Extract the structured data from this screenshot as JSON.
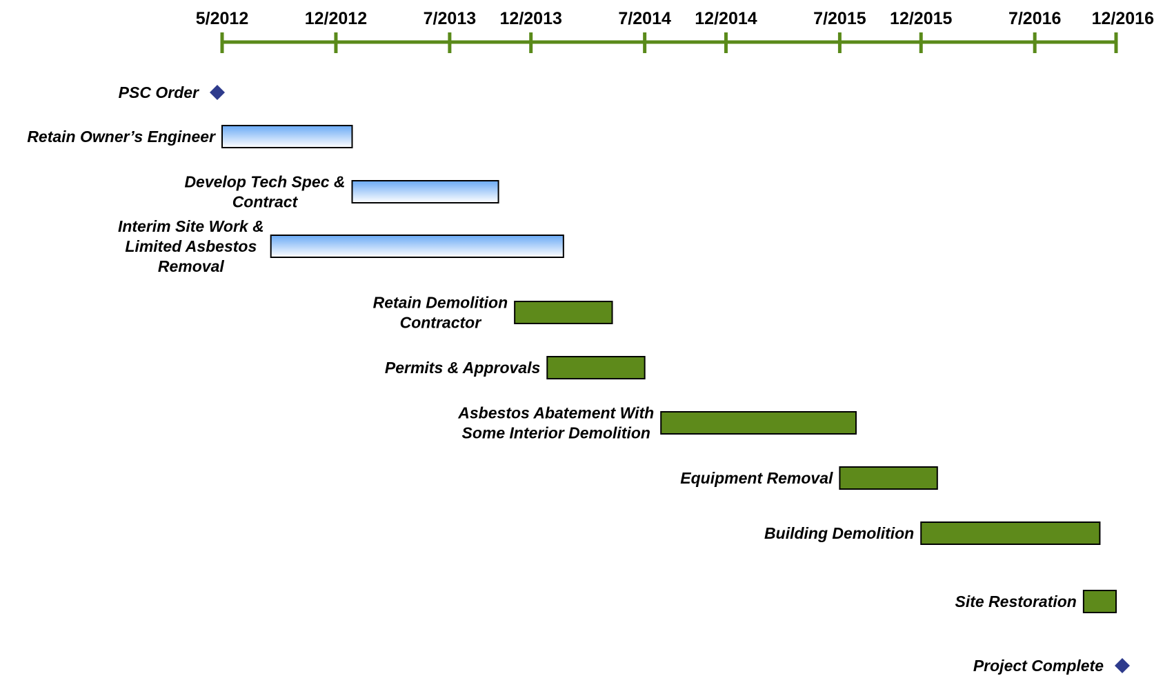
{
  "chart_data": {
    "type": "gantt",
    "title": "",
    "xlabel": "",
    "ylabel": "",
    "x_axis": {
      "ticks": [
        "5/2012",
        "12/2012",
        "7/2013",
        "12/2013",
        "7/2014",
        "12/2014",
        "7/2015",
        "12/2015",
        "7/2016",
        "12/2016"
      ],
      "range": [
        "2012-05",
        "2016-12"
      ],
      "color": "#5a8a1a"
    },
    "grid": false,
    "colors": {
      "phase1_bar_top": "#6aaaf5",
      "phase1_bar_bottom": "#ffffff",
      "phase2_bar": "#5e8a1b",
      "milestone": "#2e3b8c"
    },
    "tasks": [
      {
        "label_lines": [
          "PSC Order"
        ],
        "type": "milestone",
        "date": "2012-05"
      },
      {
        "label_lines": [
          "Retain Owner’s Engineer"
        ],
        "type": "bar",
        "phase": 1,
        "start": "2012-05",
        "end": "2013-01"
      },
      {
        "label_lines": [
          "Develop Tech Spec &",
          "Contract"
        ],
        "type": "bar",
        "phase": 1,
        "start": "2013-01",
        "end": "2013-10"
      },
      {
        "label_lines": [
          "Interim Site Work &",
          "Limited Asbestos",
          "Removal"
        ],
        "type": "bar",
        "phase": 1,
        "start": "2012-08",
        "end": "2014-02"
      },
      {
        "label_lines": [
          "Retain Demolition",
          "Contractor"
        ],
        "type": "bar",
        "phase": 2,
        "start": "2013-11",
        "end": "2014-05"
      },
      {
        "label_lines": [
          "Permits & Approvals"
        ],
        "type": "bar",
        "phase": 2,
        "start": "2014-01",
        "end": "2014-07"
      },
      {
        "label_lines": [
          "Asbestos Abatement  With",
          "Some Interior Demolition"
        ],
        "type": "bar",
        "phase": 2,
        "start": "2014-08",
        "end": "2015-08"
      },
      {
        "label_lines": [
          "Equipment Removal"
        ],
        "type": "bar",
        "phase": 2,
        "start": "2015-07",
        "end": "2016-01"
      },
      {
        "label_lines": [
          "Building Demolition"
        ],
        "type": "bar",
        "phase": 2,
        "start": "2015-12",
        "end": "2016-11"
      },
      {
        "label_lines": [
          "Site Restoration"
        ],
        "type": "bar",
        "phase": 2,
        "start": "2016-10",
        "end": "2016-12"
      },
      {
        "label_lines": [
          "Project Complete"
        ],
        "type": "milestone",
        "date": "2016-12"
      }
    ]
  }
}
